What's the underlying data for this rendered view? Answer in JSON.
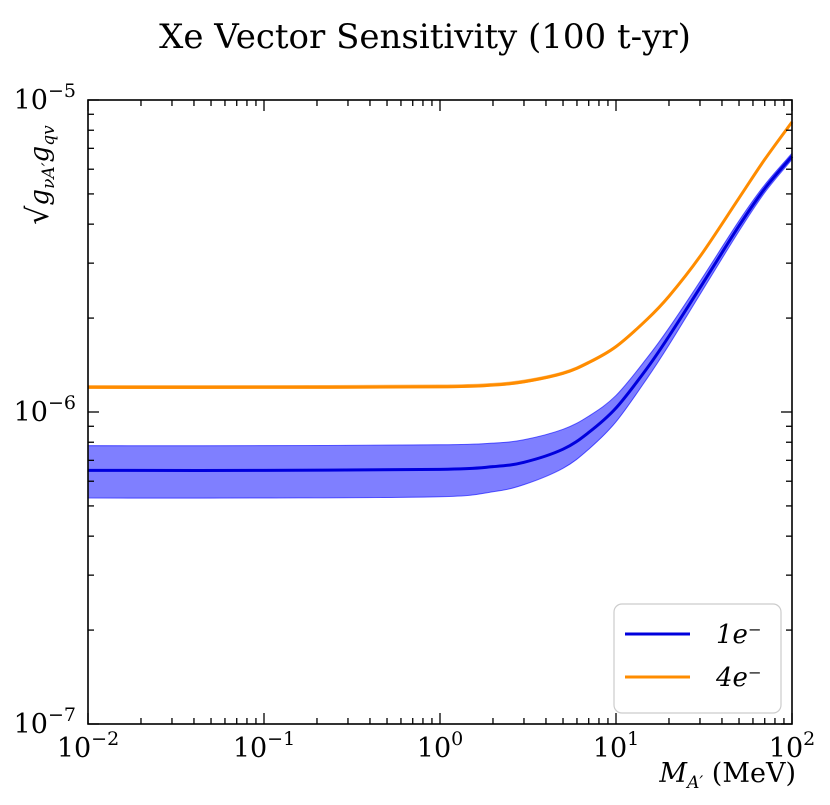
{
  "chart_data": {
    "type": "line",
    "title": "Xe Vector Sensitivity (100 t-yr)",
    "xlabel": "M_{A'} (MeV)",
    "ylabel": "√(g_{νA'} g_{qv})",
    "xscale": "log",
    "yscale": "log",
    "xlim": [
      0.01,
      100
    ],
    "ylim": [
      1e-07,
      1e-05
    ],
    "x_ticks": [
      {
        "value": 0.01,
        "base": "10",
        "exp": "−2"
      },
      {
        "value": 0.1,
        "base": "10",
        "exp": "−1"
      },
      {
        "value": 1,
        "base": "10",
        "exp": "0"
      },
      {
        "value": 10,
        "base": "10",
        "exp": "1"
      },
      {
        "value": 100,
        "base": "10",
        "exp": "2"
      }
    ],
    "y_ticks": [
      {
        "value": 1e-07,
        "base": "10",
        "exp": "−7"
      },
      {
        "value": 1e-06,
        "base": "10",
        "exp": "−6"
      },
      {
        "value": 1e-05,
        "base": "10",
        "exp": "−5"
      }
    ],
    "grid": false,
    "legend_position": "bottom-right",
    "series": [
      {
        "name": "1e⁻",
        "color": "#0000dd",
        "band_color": "#0000ff",
        "x": [
          0.01,
          0.1,
          1,
          2,
          3,
          5,
          7,
          10,
          15,
          20,
          30,
          50,
          70,
          100
        ],
        "y": [
          6.5e-07,
          6.5e-07,
          6.55e-07,
          6.68e-07,
          6.9e-07,
          7.6e-07,
          8.6e-07,
          1.03e-06,
          1.38e-06,
          1.75e-06,
          2.5e-06,
          3.95e-06,
          5.2e-06,
          6.6e-06
        ],
        "y_low": [
          5.3e-07,
          5.3e-07,
          5.35e-07,
          5.55e-07,
          5.85e-07,
          6.6e-07,
          7.6e-07,
          9.3e-07,
          1.28e-06,
          1.64e-06,
          2.38e-06,
          3.8e-06,
          5.05e-06,
          6.45e-06
        ],
        "y_high": [
          7.8e-07,
          7.8e-07,
          7.85e-07,
          7.95e-07,
          8.15e-07,
          8.8e-07,
          9.7e-07,
          1.13e-06,
          1.49e-06,
          1.86e-06,
          2.62e-06,
          4.1e-06,
          5.35e-06,
          6.75e-06
        ]
      },
      {
        "name": "4e⁻",
        "color": "#ff8c00",
        "band_color": "#ff8c00",
        "x": [
          0.01,
          0.1,
          1,
          2,
          3,
          5,
          7,
          10,
          15,
          20,
          30,
          50,
          70,
          100
        ],
        "y": [
          1.2e-06,
          1.2e-06,
          1.205e-06,
          1.22e-06,
          1.25e-06,
          1.33e-06,
          1.44e-06,
          1.62e-06,
          1.98e-06,
          2.35e-06,
          3.15e-06,
          4.85e-06,
          6.45e-06,
          8.5e-06
        ],
        "y_low": [
          1.19e-06,
          1.19e-06,
          1.195e-06,
          1.21e-06,
          1.24e-06,
          1.32e-06,
          1.43e-06,
          1.61e-06,
          1.97e-06,
          2.34e-06,
          3.13e-06,
          4.82e-06,
          6.42e-06,
          8.45e-06
        ],
        "y_high": [
          1.215e-06,
          1.215e-06,
          1.22e-06,
          1.235e-06,
          1.265e-06,
          1.345e-06,
          1.455e-06,
          1.635e-06,
          1.995e-06,
          2.37e-06,
          3.17e-06,
          4.88e-06,
          6.48e-06,
          8.55e-06
        ]
      }
    ]
  }
}
